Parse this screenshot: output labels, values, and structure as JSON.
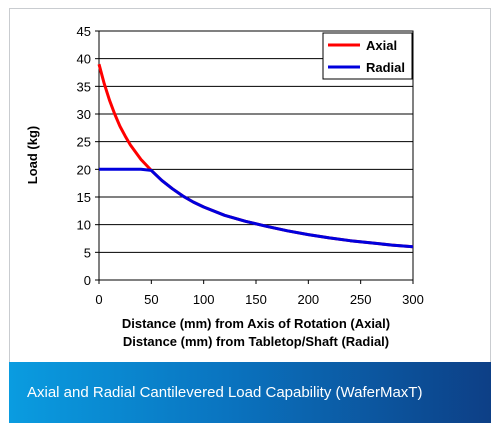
{
  "chart_data": {
    "type": "line",
    "title": "",
    "xlabel": [
      "Distance (mm) from Axis of Rotation (Axial)",
      "Distance (mm) from Tabletop/Shaft (Radial)"
    ],
    "ylabel": "Load (kg)",
    "xlim": [
      0,
      300
    ],
    "ylim": [
      0,
      45
    ],
    "x_ticks": [
      0,
      50,
      100,
      150,
      200,
      250,
      300
    ],
    "y_ticks": [
      0,
      5,
      10,
      15,
      20,
      25,
      30,
      35,
      40,
      45
    ],
    "grid": "horizontal",
    "legend_position": "top-right",
    "series": [
      {
        "name": "Axial",
        "color": "#ff0000",
        "x": [
          0,
          5,
          10,
          15,
          20,
          25,
          30,
          40,
          50,
          60,
          70,
          80,
          90,
          100,
          120,
          140,
          160,
          180,
          200,
          220,
          240,
          260,
          280,
          300
        ],
        "y": [
          39,
          35.5,
          32.5,
          30,
          27.8,
          26,
          24.4,
          21.8,
          19.8,
          18,
          16.5,
          15.2,
          14.1,
          13.2,
          11.7,
          10.6,
          9.7,
          8.9,
          8.2,
          7.6,
          7.1,
          6.7,
          6.3,
          6
        ]
      },
      {
        "name": "Radial",
        "color": "#0000dd",
        "x": [
          0,
          10,
          20,
          30,
          40,
          50,
          60,
          70,
          80,
          90,
          100,
          120,
          140,
          160,
          180,
          200,
          220,
          240,
          260,
          280,
          300
        ],
        "y": [
          20,
          20,
          20,
          20,
          20,
          19.8,
          18,
          16.5,
          15.2,
          14.1,
          13.2,
          11.7,
          10.6,
          9.7,
          8.9,
          8.2,
          7.6,
          7.1,
          6.7,
          6.3,
          6
        ]
      }
    ]
  },
  "caption": "Axial and Radial Cantilevered Load Capability (WaferMaxT)"
}
